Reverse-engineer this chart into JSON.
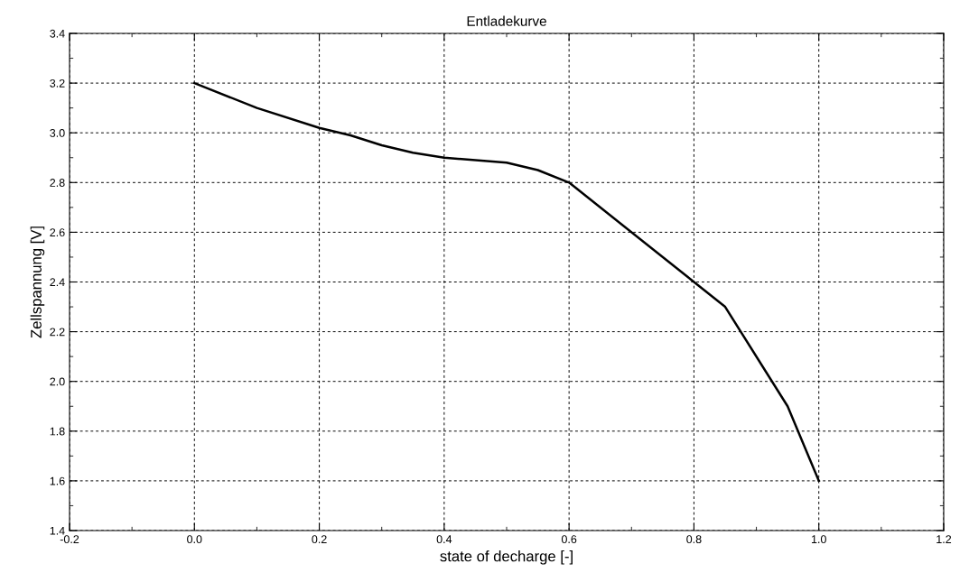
{
  "chart_data": {
    "type": "line",
    "title": "Entladekurve",
    "xlabel": "state of decharge [-]",
    "ylabel": "Zellspannung [V]",
    "x": [
      0,
      0.1,
      0.2,
      0.25,
      0.3,
      0.35,
      0.4,
      0.5,
      0.55,
      0.6,
      0.85,
      0.95,
      1.0
    ],
    "series": [
      {
        "color": "#000000",
        "values": [
          3.2,
          3.1,
          3.02,
          2.99,
          2.95,
          2.92,
          2.9,
          2.88,
          2.85,
          2.8,
          2.3,
          1.9,
          1.6
        ]
      }
    ],
    "xlim": [
      -0.2,
      1.2
    ],
    "xticks": [
      -0.2,
      {
        "value": 0,
        "label": "0.0"
      },
      0.2,
      0.4,
      0.6,
      0.8,
      {
        "value": 1,
        "label": "1.0"
      },
      1.2
    ],
    "ylim": [
      1.4,
      3.4
    ],
    "yticks": [
      1.4,
      1.6,
      1.8,
      {
        "value": 2,
        "label": "2.0"
      },
      2.2,
      2.4,
      2.6,
      2.8,
      {
        "value": 3,
        "label": "3.0"
      },
      3.2,
      3.4
    ],
    "grid": true,
    "marker": "none",
    "line_style": "solid",
    "legend": false
  }
}
